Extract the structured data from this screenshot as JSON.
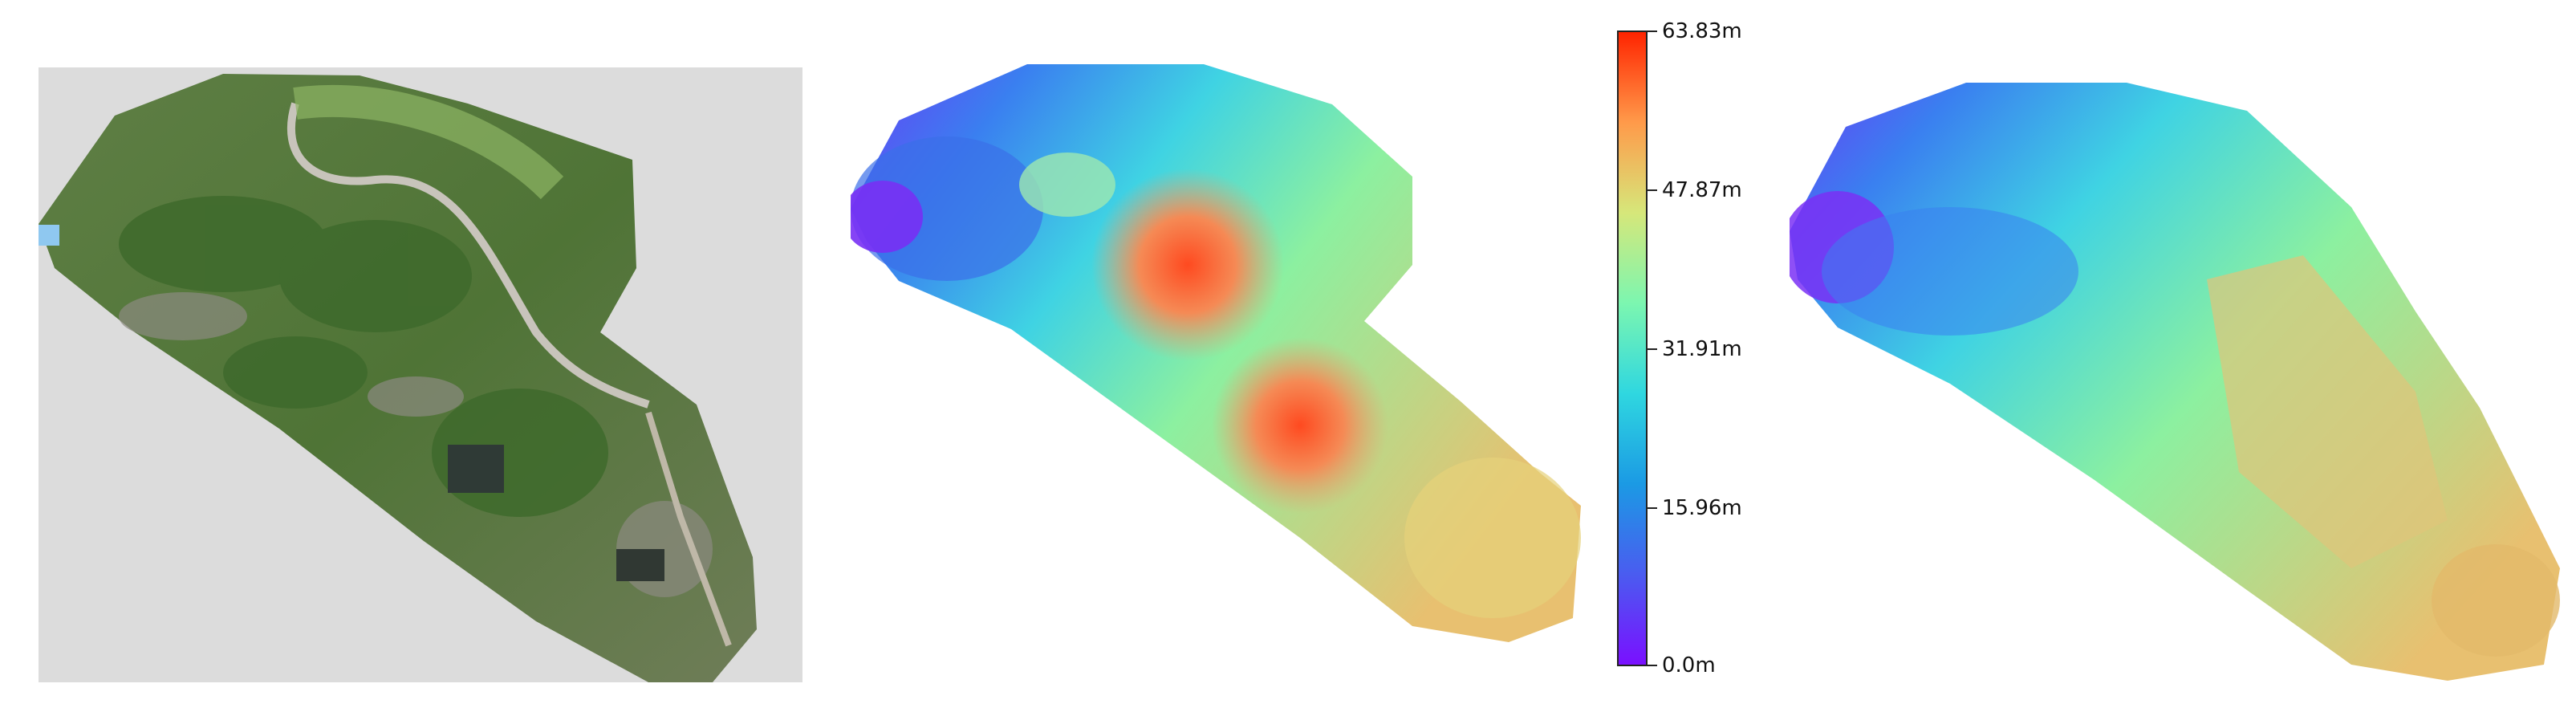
{
  "colorbar": {
    "ticks": [
      "63.83m",
      "47.87m",
      "31.91m",
      "15.96m",
      "0.0m"
    ],
    "colors": [
      "#ff2400",
      "#ff9a4a",
      "#d6e77a",
      "#7cf6b0",
      "#2fd7e0",
      "#1b9ae4",
      "#4a5cf0",
      "#7a10ff"
    ]
  },
  "panels": {
    "left": "aerial-orthophoto",
    "middle": "height-map-dense",
    "right": "height-map-smooth"
  }
}
